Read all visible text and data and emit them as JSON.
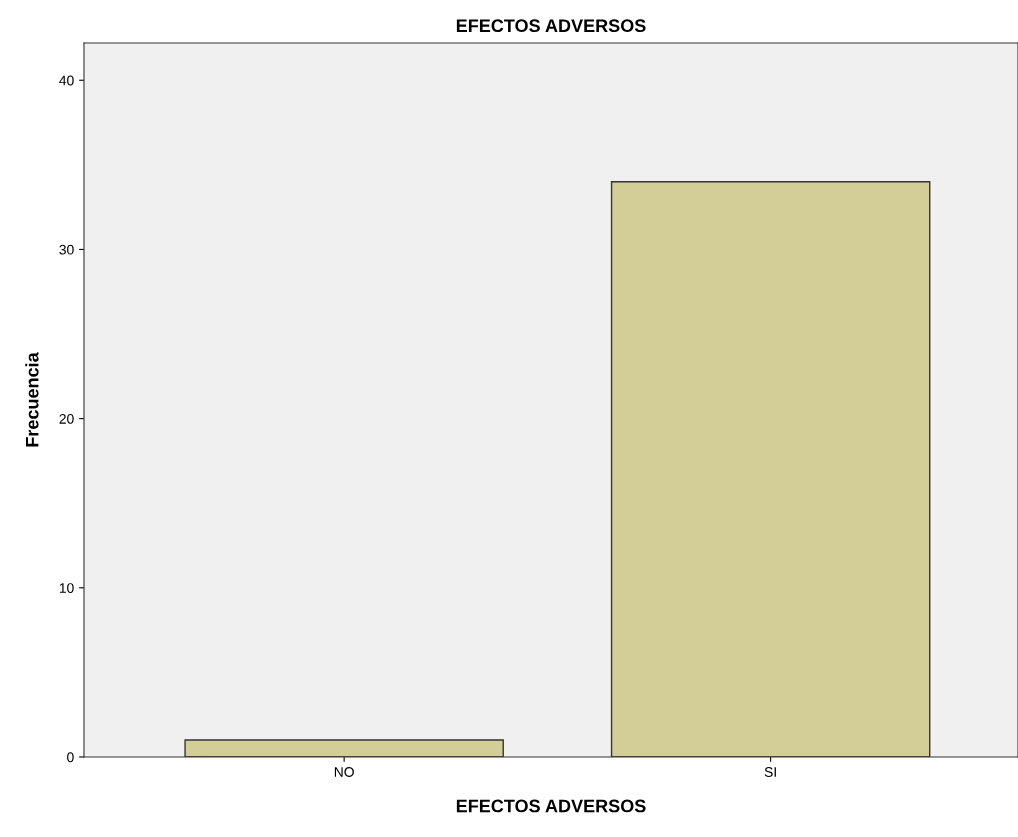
{
  "chart_data": {
    "type": "bar",
    "title": "EFECTOS ADVERSOS",
    "xlabel": "EFECTOS ADVERSOS",
    "ylabel": "Frecuencia",
    "categories": [
      "NO",
      "SI"
    ],
    "values": [
      1,
      34
    ],
    "color": "#d3ce97",
    "ylim": [
      0,
      42.2
    ],
    "yticks": [
      0,
      10,
      20,
      30,
      40
    ],
    "grid": false
  }
}
